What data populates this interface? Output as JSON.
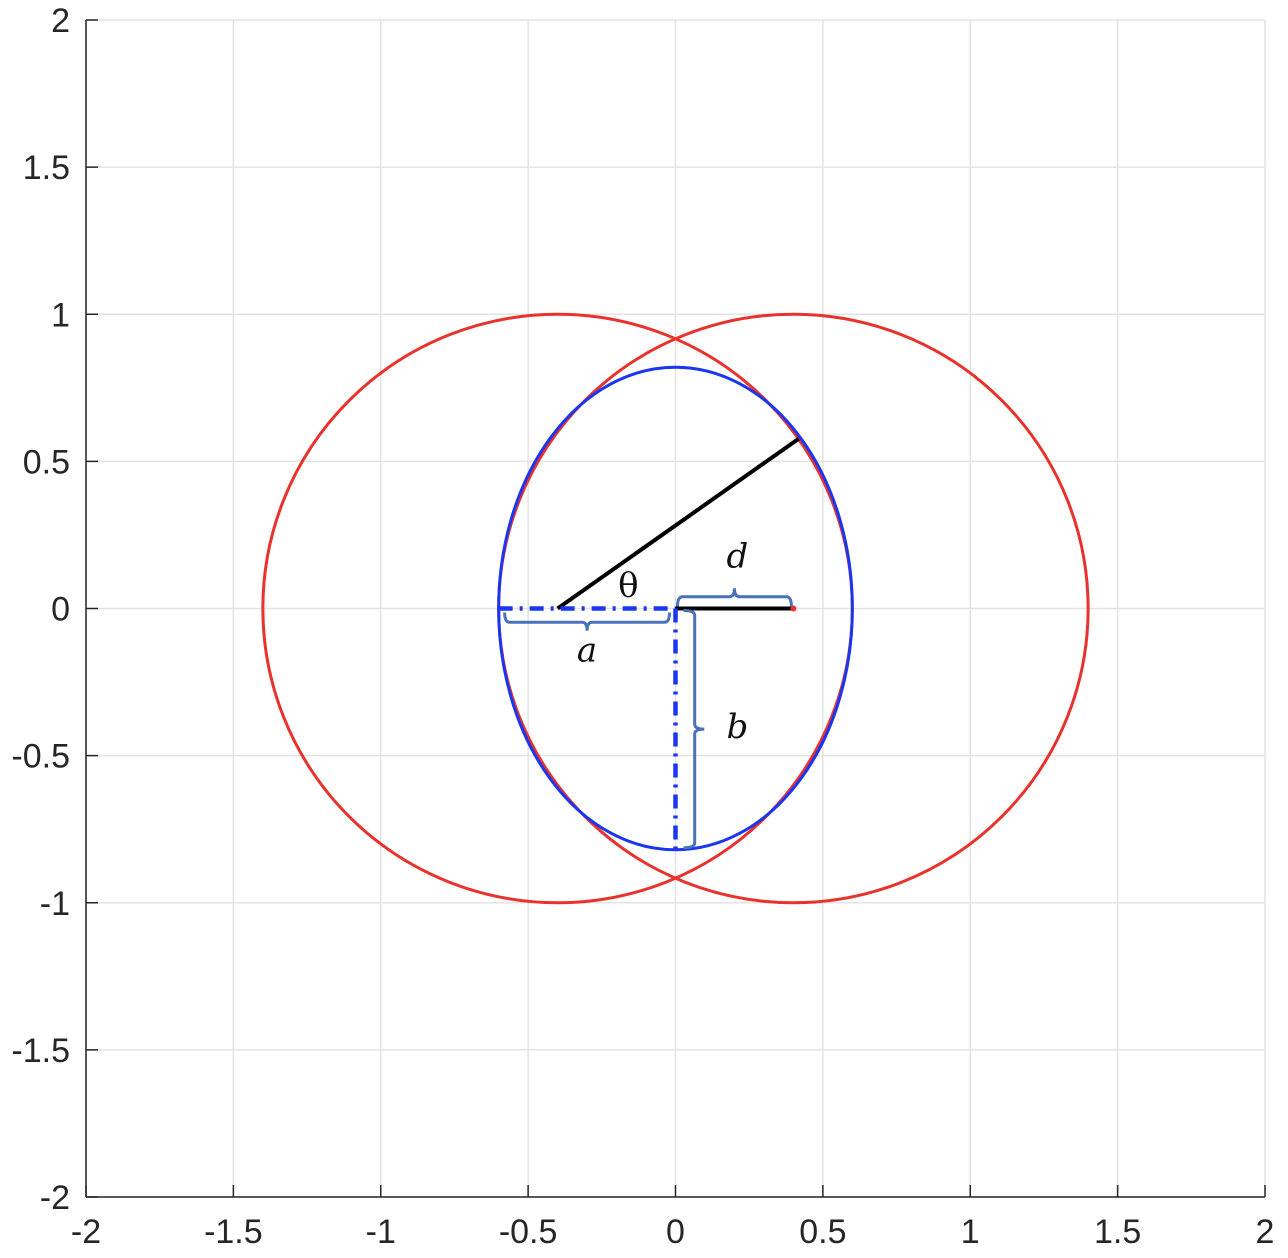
{
  "chart_data": {
    "type": "line",
    "title": "",
    "xlabel": "",
    "ylabel": "",
    "xlim": [
      -2,
      2
    ],
    "ylim": [
      -2,
      2
    ],
    "grid": true,
    "aspect": "equal",
    "x_ticks": [
      -2,
      -1.5,
      -1,
      -0.5,
      0,
      0.5,
      1,
      1.5,
      2
    ],
    "x_tick_labels": [
      "-2",
      "-1.5",
      "-1",
      "-0.5",
      "0",
      "0.5",
      "1",
      "1.5",
      "2"
    ],
    "y_ticks": [
      -2,
      -1.5,
      -1,
      -0.5,
      0,
      0.5,
      1,
      1.5,
      2
    ],
    "y_tick_labels": [
      "-2",
      "-1.5",
      "-1",
      "-0.5",
      "0",
      "0.5",
      "1",
      "1.5",
      "2"
    ],
    "colors": {
      "circle": "#e8322b",
      "ellipse": "#1a36f0",
      "segment": "#000000",
      "brace": "#4a72b8",
      "grid": "#e3e3e3",
      "axis": "#262626"
    },
    "series": [
      {
        "kind": "circle",
        "center": [
          -0.4,
          0
        ],
        "radius": 1.0
      },
      {
        "kind": "circle",
        "center": [
          0.4,
          0
        ],
        "radius": 1.0
      },
      {
        "kind": "ellipse",
        "center": [
          0,
          0
        ],
        "semi_x": 0.6,
        "semi_y": 0.82
      },
      {
        "kind": "segment",
        "from": [
          -0.4,
          0
        ],
        "to": [
          0.418,
          0.577
        ],
        "style": "solid"
      },
      {
        "kind": "segment",
        "from": [
          0,
          0
        ],
        "to": [
          0.4,
          0
        ],
        "style": "solid"
      },
      {
        "kind": "segment",
        "from": [
          -0.6,
          0
        ],
        "to": [
          0,
          0
        ],
        "style": "dashdot"
      },
      {
        "kind": "segment",
        "from": [
          0,
          0
        ],
        "to": [
          0,
          -0.82
        ],
        "style": "dashdot"
      }
    ],
    "annotations": [
      {
        "text": "θ",
        "x": -0.16,
        "y": 0.04,
        "italic": false
      },
      {
        "text": "d",
        "x": 0.21,
        "y": 0.14,
        "italic": true
      },
      {
        "text": "a",
        "x": -0.3,
        "y": -0.18,
        "italic": true
      },
      {
        "text": "b",
        "x": 0.21,
        "y": -0.44,
        "italic": true
      }
    ],
    "braces": [
      {
        "label": "d",
        "from": [
          0,
          0
        ],
        "to": [
          0.4,
          0
        ]
      },
      {
        "label": "a",
        "from": [
          -0.6,
          0
        ],
        "to": [
          0,
          0
        ]
      },
      {
        "label": "b",
        "from": [
          0,
          0
        ],
        "to": [
          0,
          -0.82
        ]
      }
    ]
  }
}
